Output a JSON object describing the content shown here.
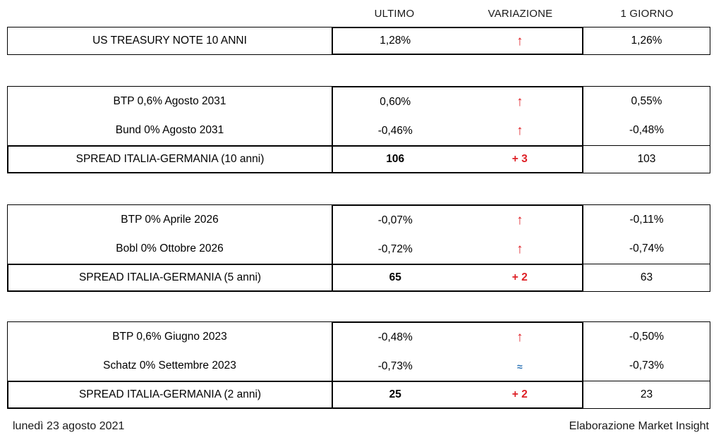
{
  "chart_data": {
    "type": "table",
    "columns": [
      "ULTIMO",
      "VARIAZIONE",
      "1 GIORNO"
    ],
    "sections": [
      {
        "rows": [
          {
            "label": "US TREASURY NOTE 10 ANNI",
            "ultimo": "1,28%",
            "var_symbol": "↑",
            "direction": "up",
            "giorno": "1,26%"
          }
        ]
      },
      {
        "rows": [
          {
            "label": "BTP 0,6% Agosto 2031",
            "ultimo": "0,60%",
            "var_symbol": "↑",
            "direction": "up",
            "giorno": "0,55%"
          },
          {
            "label": "Bund 0% Agosto 2031",
            "ultimo": "-0,46%",
            "var_symbol": "↑",
            "direction": "up",
            "giorno": "-0,48%"
          }
        ],
        "spread": {
          "label": "SPREAD ITALIA-GERMANIA (10 anni)",
          "ultimo": "106",
          "variation": "+ 3",
          "direction": "up",
          "giorno": "103"
        }
      },
      {
        "rows": [
          {
            "label": "BTP 0% Aprile 2026",
            "ultimo": "-0,07%",
            "var_symbol": "↑",
            "direction": "up",
            "giorno": "-0,11%"
          },
          {
            "label": "Bobl 0% Ottobre 2026",
            "ultimo": "-0,72%",
            "var_symbol": "↑",
            "direction": "up",
            "giorno": "-0,74%"
          }
        ],
        "spread": {
          "label": "SPREAD ITALIA-GERMANIA (5 anni)",
          "ultimo": "65",
          "variation": "+ 2",
          "direction": "up",
          "giorno": "63"
        }
      },
      {
        "rows": [
          {
            "label": "BTP 0,6% Giugno 2023",
            "ultimo": "-0,48%",
            "var_symbol": "↑",
            "direction": "up",
            "giorno": "-0,50%"
          },
          {
            "label": "Schatz 0% Settembre 2023",
            "ultimo": "-0,73%",
            "var_symbol": "≈",
            "direction": "flat",
            "giorno": "-0,73%"
          }
        ],
        "spread": {
          "label": "SPREAD ITALIA-GERMANIA (2 anni)",
          "ultimo": "25",
          "variation": "+ 2",
          "direction": "up",
          "giorno": "23"
        }
      }
    ]
  },
  "footer": {
    "date": "lunedì 23 agosto 2021",
    "credit": "Elaborazione Market Insight"
  },
  "colors": {
    "up_red": "#DE2026",
    "flat_blue": "#2E75B6",
    "border_black": "#000000"
  }
}
